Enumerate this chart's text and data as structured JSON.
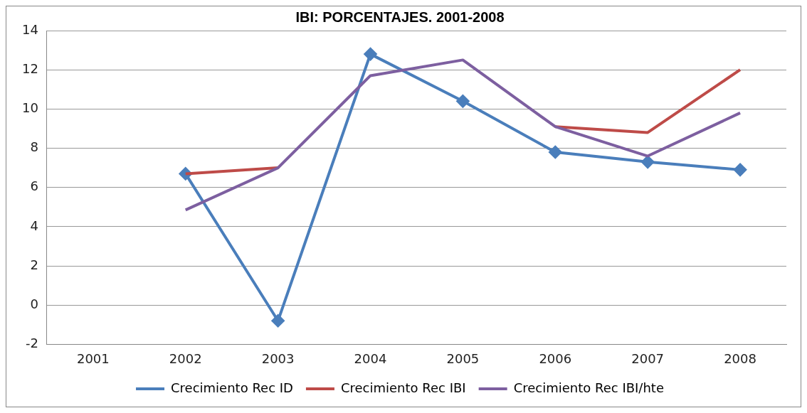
{
  "chart_data": {
    "type": "line",
    "title": "IBI: PORCENTAJES. 2001-2008",
    "categories": [
      "2001",
      "2002",
      "2003",
      "2004",
      "2005",
      "2006",
      "2007",
      "2008"
    ],
    "series": [
      {
        "name": "Crecimiento Rec ID",
        "color": "#4a7ebb",
        "marker": "diamond",
        "values": [
          null,
          6.7,
          -0.8,
          12.8,
          10.4,
          7.8,
          7.3,
          6.9
        ]
      },
      {
        "name": "Crecimiento Rec IBI",
        "color": "#be4b48",
        "marker": "none",
        "values": [
          null,
          6.7,
          7.0,
          null,
          null,
          9.1,
          8.8,
          12.0
        ]
      },
      {
        "name": "Crecimiento Rec IBI/hte",
        "color": "#7d5fa0",
        "marker": "none",
        "values": [
          null,
          4.85,
          7.0,
          11.7,
          12.5,
          9.1,
          7.6,
          9.8
        ]
      }
    ],
    "ylim": [
      -2,
      14
    ],
    "yticks": [
      -2,
      0,
      2,
      4,
      6,
      8,
      10,
      12,
      14
    ],
    "grid": "y",
    "legend": "bottom"
  }
}
